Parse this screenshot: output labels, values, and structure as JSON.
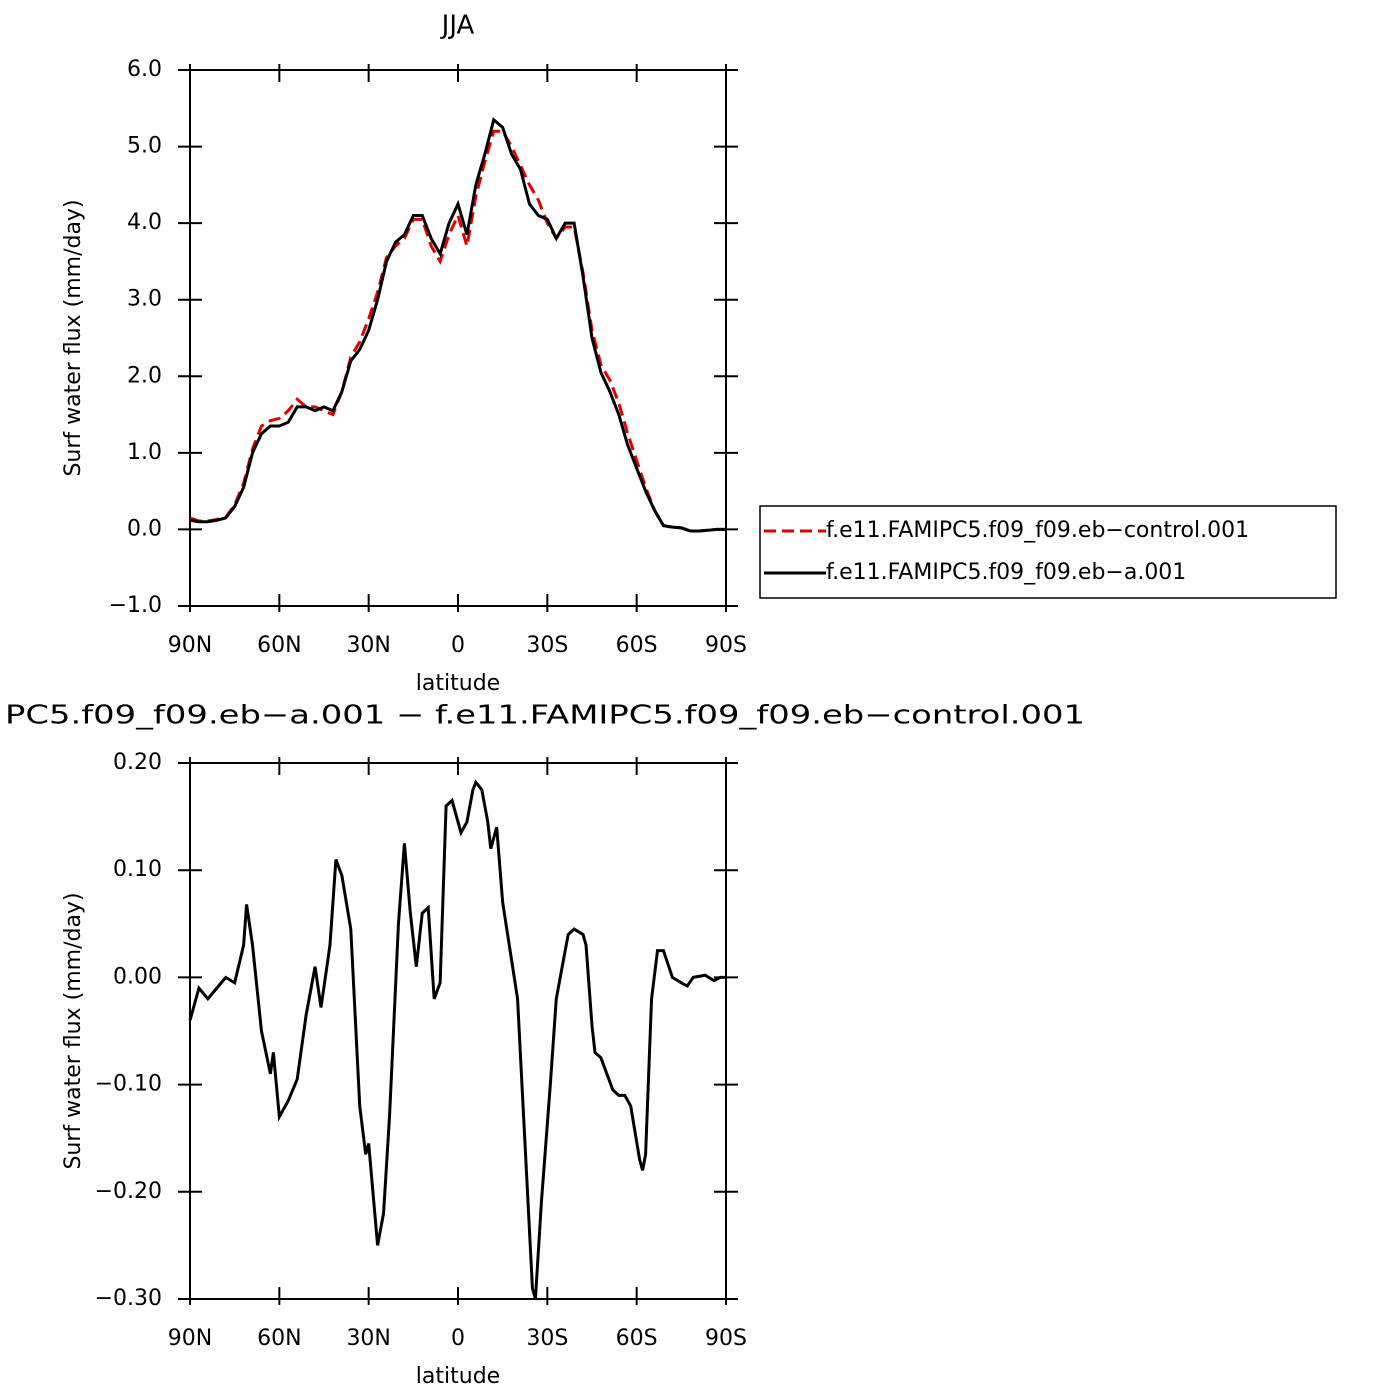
{
  "chart_data": [
    {
      "type": "line",
      "title": "JJA",
      "xlabel": "latitude",
      "ylabel": "Surf water flux (mm/day)",
      "x": [
        90,
        87,
        84,
        81,
        78,
        75,
        72,
        69,
        66,
        63,
        60,
        57,
        54,
        51,
        48,
        45,
        42,
        39,
        36,
        33,
        30,
        27,
        24,
        21,
        18,
        15,
        12,
        9,
        6,
        3,
        0,
        -3,
        -6,
        -9,
        -12,
        -15,
        -18,
        -21,
        -24,
        -27,
        -30,
        -33,
        -36,
        -39,
        -42,
        -45,
        -48,
        -51,
        -54,
        -57,
        -60,
        -63,
        -66,
        -69,
        -72,
        -75,
        -78,
        -81,
        -84,
        -87,
        -90
      ],
      "series": [
        {
          "name": "f.e11.FAMIPC5.f09_f09.eb−control.001",
          "color": "#e00000",
          "dashed": true,
          "values": [
            0.15,
            0.11,
            0.11,
            0.13,
            0.16,
            0.32,
            0.6,
            1.05,
            1.35,
            1.42,
            1.45,
            1.55,
            1.7,
            1.6,
            1.6,
            1.55,
            1.5,
            1.8,
            2.25,
            2.45,
            2.75,
            3.1,
            3.55,
            3.7,
            3.8,
            4.05,
            4.05,
            3.7,
            3.5,
            3.85,
            4.1,
            3.7,
            4.35,
            4.8,
            5.2,
            5.2,
            5.0,
            4.75,
            4.5,
            4.3,
            4.0,
            3.8,
            3.95,
            3.95,
            3.35,
            2.6,
            2.15,
            1.95,
            1.65,
            1.25,
            0.9,
            0.55,
            0.25,
            0.05,
            0.03,
            0.02,
            -0.02,
            -0.02,
            -0.01,
            0.0,
            0.0
          ]
        },
        {
          "name": "f.e11.FAMIPC5.f09_f09.eb−a.001",
          "color": "#000000",
          "dashed": false,
          "values": [
            0.12,
            0.1,
            0.1,
            0.12,
            0.15,
            0.3,
            0.55,
            1.0,
            1.25,
            1.35,
            1.35,
            1.4,
            1.6,
            1.6,
            1.55,
            1.6,
            1.55,
            1.8,
            2.2,
            2.35,
            2.6,
            3.0,
            3.5,
            3.75,
            3.85,
            4.1,
            4.1,
            3.8,
            3.6,
            4.0,
            4.25,
            3.85,
            4.5,
            4.9,
            5.35,
            5.25,
            4.9,
            4.7,
            4.25,
            4.1,
            4.05,
            3.8,
            4.0,
            4.0,
            3.3,
            2.5,
            2.05,
            1.8,
            1.5,
            1.1,
            0.8,
            0.5,
            0.25,
            0.05,
            0.03,
            0.02,
            -0.02,
            -0.02,
            -0.01,
            0.0,
            0.0
          ]
        }
      ],
      "xlim": [
        90,
        -90
      ],
      "xticks": [
        {
          "value": 90,
          "label": "90N"
        },
        {
          "value": 60,
          "label": "60N"
        },
        {
          "value": 30,
          "label": "30N"
        },
        0,
        {
          "value": -30,
          "label": "30S"
        },
        {
          "value": -60,
          "label": "60S"
        },
        {
          "value": -90,
          "label": "90S"
        }
      ],
      "ylim": [
        -1,
        6
      ],
      "yticks": [
        {
          "value": -1,
          "label": "−1.0"
        },
        {
          "value": 0,
          "label": "0.0"
        },
        {
          "value": 1,
          "label": "1.0"
        },
        {
          "value": 2,
          "label": "2.0"
        },
        {
          "value": 3,
          "label": "3.0"
        },
        {
          "value": 4,
          "label": "4.0"
        },
        {
          "value": 5,
          "label": "5.0"
        },
        {
          "value": 6,
          "label": "6.0"
        }
      ],
      "legend": "right",
      "grid": false
    },
    {
      "type": "line",
      "title": "PC5.f09_f09.eb−a.001 − f.e11.FAMIPC5.f09_f09.eb−control.001",
      "xlabel": "latitude",
      "ylabel": "Surf water flux (mm/day)",
      "x": [
        90,
        87,
        84,
        81,
        78,
        75,
        72,
        71,
        69,
        66,
        63,
        62,
        60,
        57,
        54,
        51,
        48,
        46,
        43,
        41,
        39,
        36,
        33,
        31,
        30,
        27,
        25,
        23,
        20,
        18,
        16,
        14,
        12,
        10,
        8,
        6,
        4,
        2,
        -1,
        -3,
        -5,
        -6,
        -8,
        -10,
        -11,
        -13,
        -15,
        -20,
        -25,
        -26,
        -28,
        -31,
        -33,
        -37,
        -39,
        -42,
        -43,
        -45,
        -46,
        -48,
        -52,
        -54,
        -56,
        -58,
        -61,
        -62,
        -63,
        -65,
        -67,
        -69,
        -72,
        -75,
        -77,
        -79,
        -83,
        -86,
        -88,
        -90
      ],
      "series": [
        {
          "color": "#000000",
          "dashed": false,
          "values": [
            -0.04,
            -0.01,
            -0.02,
            -0.01,
            0.0,
            -0.005,
            0.03,
            0.068,
            0.03,
            -0.05,
            -0.09,
            -0.07,
            -0.13,
            -0.115,
            -0.095,
            -0.035,
            0.01,
            -0.028,
            0.03,
            0.11,
            0.095,
            0.045,
            -0.12,
            -0.165,
            -0.155,
            -0.25,
            -0.22,
            -0.13,
            0.05,
            0.125,
            0.06,
            0.01,
            0.06,
            0.065,
            -0.02,
            -0.005,
            0.16,
            0.165,
            0.135,
            0.145,
            0.175,
            0.182,
            0.175,
            0.145,
            0.12,
            0.14,
            0.07,
            -0.02,
            -0.29,
            -0.3,
            -0.21,
            -0.1,
            -0.02,
            0.04,
            0.045,
            0.04,
            0.03,
            -0.045,
            -0.07,
            -0.075,
            -0.105,
            -0.11,
            -0.11,
            -0.12,
            -0.17,
            -0.18,
            -0.165,
            -0.02,
            0.025,
            0.025,
            0.0,
            -0.005,
            -0.008,
            0.0,
            0.002,
            -0.003,
            0.0,
            0.0
          ]
        }
      ],
      "xlim": [
        90,
        -90
      ],
      "xticks": [
        {
          "value": 90,
          "label": "90N"
        },
        {
          "value": 60,
          "label": "60N"
        },
        {
          "value": 30,
          "label": "30N"
        },
        0,
        {
          "value": -30,
          "label": "30S"
        },
        {
          "value": -60,
          "label": "60S"
        },
        {
          "value": -90,
          "label": "90S"
        }
      ],
      "ylim": [
        -0.3,
        0.2
      ],
      "yticks": [
        {
          "value": -0.3,
          "label": "−0.30"
        },
        {
          "value": -0.2,
          "label": "−0.20"
        },
        {
          "value": -0.1,
          "label": "−0.10"
        },
        {
          "value": 0,
          "label": "0.00"
        },
        {
          "value": 0.1,
          "label": "0.10"
        },
        {
          "value": 0.2,
          "label": "0.20"
        }
      ],
      "grid": false
    }
  ]
}
